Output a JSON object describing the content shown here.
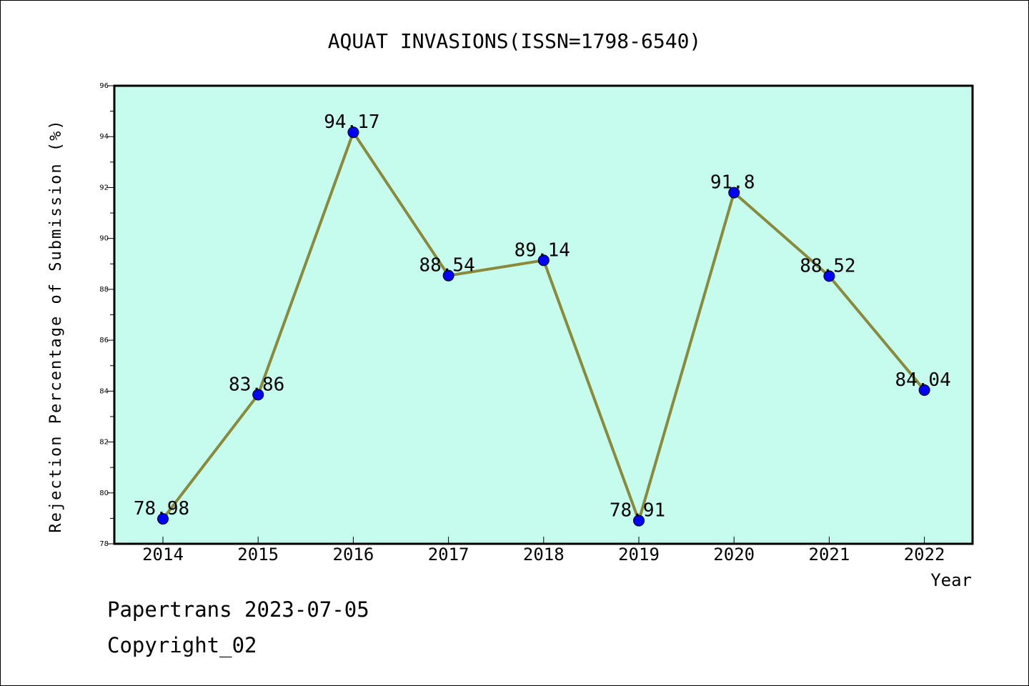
{
  "chart_data": {
    "type": "line",
    "title": "AQUAT INVASIONS(ISSN=1798-6540)",
    "xlabel": "Year",
    "ylabel": "Rejection Percentage of Submission (%)",
    "categories": [
      "2014",
      "2015",
      "2016",
      "2017",
      "2018",
      "2019",
      "2020",
      "2021",
      "2022"
    ],
    "series": [
      {
        "values": [
          78.98,
          83.86,
          94.17,
          88.54,
          89.14,
          78.91,
          91.8,
          88.52,
          84.04
        ]
      }
    ],
    "data_labels": [
      "78.98",
      "83.86",
      "94.17",
      "88.54",
      "89.14",
      "78.91",
      "91.8",
      "88.52",
      "84.04"
    ],
    "ylim": [
      78,
      96
    ],
    "yticks": [
      78,
      80,
      82,
      84,
      86,
      88,
      90,
      92,
      94,
      96
    ],
    "grid": false,
    "colors": {
      "plot_background": "#c6fcee",
      "line": "#8b8a3a",
      "marker": "#0000ff"
    }
  },
  "footer": {
    "line1": "Papertrans 2023-07-05",
    "line2": "Copyright_02"
  }
}
